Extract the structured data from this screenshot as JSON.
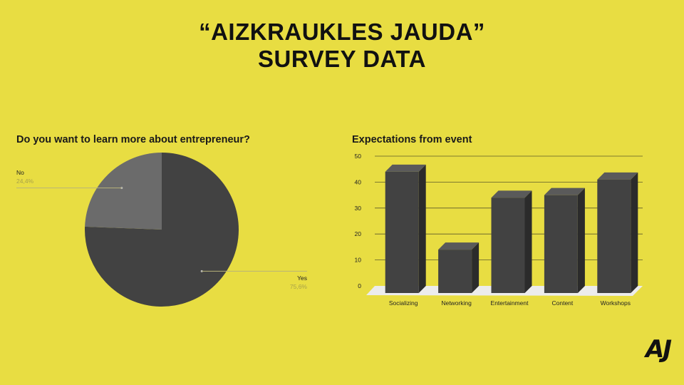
{
  "slide": {
    "title_line1": "“AIZKRAUKLES JAUDA”",
    "title_line2": "SURVEY DATA",
    "logo": "AJ"
  },
  "colors": {
    "background": "#e8dd42",
    "slice_dark": "#424242",
    "slice_light": "#6b6b6b",
    "bar_front": "#424242",
    "bar_side": "#2b2b2b",
    "bar_top": "#5a5a5a",
    "floor": "#ececec"
  },
  "chart_data": [
    {
      "type": "pie",
      "title": "Do you want to learn more about entrepreneur?",
      "slices": [
        {
          "label": "No",
          "value": 24.4,
          "value_label": "24,4%"
        },
        {
          "label": "Yes",
          "value": 75.6,
          "value_label": "75,6%"
        }
      ]
    },
    {
      "type": "bar",
      "title": "Expectations from event",
      "categories": [
        "Socializing",
        "Networking",
        "Entertainment",
        "Content",
        "Workshops"
      ],
      "values": [
        47,
        17,
        37,
        38,
        44
      ],
      "ylim": [
        0,
        50
      ],
      "yticks": [
        0,
        10,
        20,
        30,
        40,
        50
      ],
      "grid": true,
      "style": "3d"
    }
  ]
}
